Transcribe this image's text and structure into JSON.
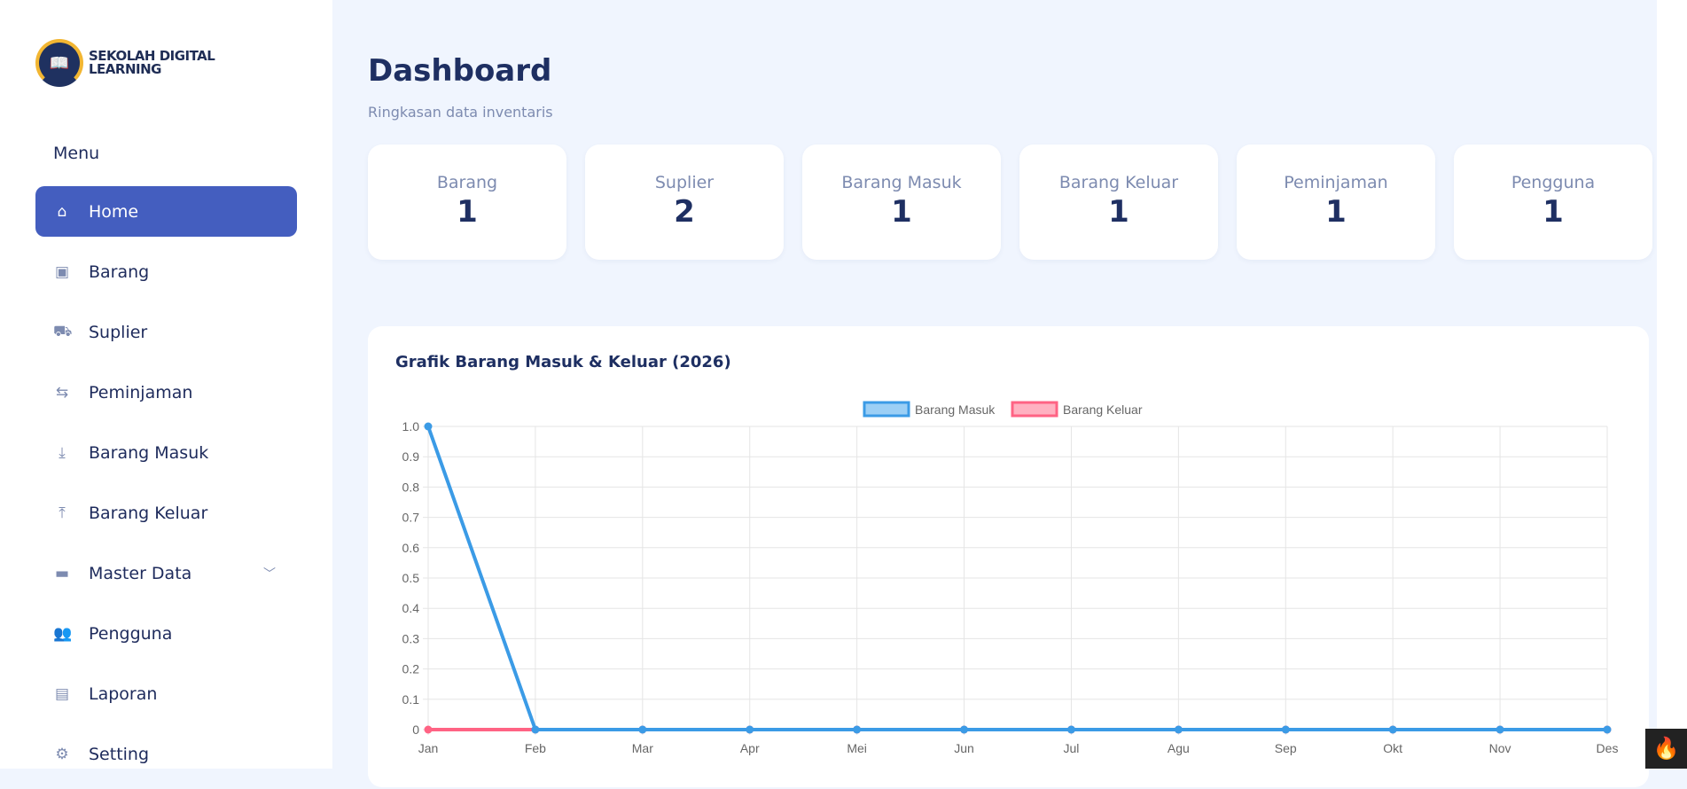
{
  "logo": {
    "line1": "SEKOLAH DIGITAL",
    "line2": "LEARNING"
  },
  "sidebar": {
    "menu_label": "Menu",
    "items": [
      {
        "label": "Home",
        "icon": "home-icon",
        "glyph": "⌂"
      },
      {
        "label": "Barang",
        "icon": "box-icon",
        "glyph": "▣"
      },
      {
        "label": "Suplier",
        "icon": "truck-icon",
        "glyph": "⛟"
      },
      {
        "label": "Peminjaman",
        "icon": "swap-icon",
        "glyph": "⇆"
      },
      {
        "label": "Barang Masuk",
        "icon": "download-icon",
        "glyph": "⤓"
      },
      {
        "label": "Barang Keluar",
        "icon": "upload-icon",
        "glyph": "⤒"
      },
      {
        "label": "Master Data",
        "icon": "archive-icon",
        "glyph": "▬"
      },
      {
        "label": "Pengguna",
        "icon": "users-icon",
        "glyph": "👥"
      },
      {
        "label": "Laporan",
        "icon": "report-icon",
        "glyph": "▤"
      },
      {
        "label": "Setting",
        "icon": "gear-icon",
        "glyph": "⚙"
      }
    ]
  },
  "header": {
    "title": "Dashboard",
    "subtitle": "Ringkasan data inventaris"
  },
  "stats": [
    {
      "label": "Barang",
      "value": "1"
    },
    {
      "label": "Suplier",
      "value": "2"
    },
    {
      "label": "Barang Masuk",
      "value": "1"
    },
    {
      "label": "Barang Keluar",
      "value": "1"
    },
    {
      "label": "Peminjaman",
      "value": "1"
    },
    {
      "label": "Pengguna",
      "value": "1"
    }
  ],
  "chart_data": {
    "type": "line",
    "title": "Grafik Barang Masuk & Keluar (2026)",
    "categories": [
      "Jan",
      "Feb",
      "Mar",
      "Apr",
      "Mei",
      "Jun",
      "Jul",
      "Agu",
      "Sep",
      "Okt",
      "Nov",
      "Des"
    ],
    "series": [
      {
        "name": "Barang Masuk",
        "color": "#3b9be6",
        "fill": "#9ccff5",
        "values": [
          1,
          0,
          0,
          0,
          0,
          0,
          0,
          0,
          0,
          0,
          0,
          0
        ]
      },
      {
        "name": "Barang Keluar",
        "color": "#ff6384",
        "fill": "#ffb1c1",
        "values": [
          0,
          0,
          0,
          0,
          0,
          0,
          0,
          0,
          0,
          0,
          0,
          0
        ]
      }
    ],
    "ylim": [
      0,
      1
    ],
    "yticks": [
      "0",
      "0.1",
      "0.2",
      "0.3",
      "0.4",
      "0.5",
      "0.6",
      "0.7",
      "0.8",
      "0.9",
      "1.0"
    ],
    "legend": "top",
    "grid": true
  }
}
